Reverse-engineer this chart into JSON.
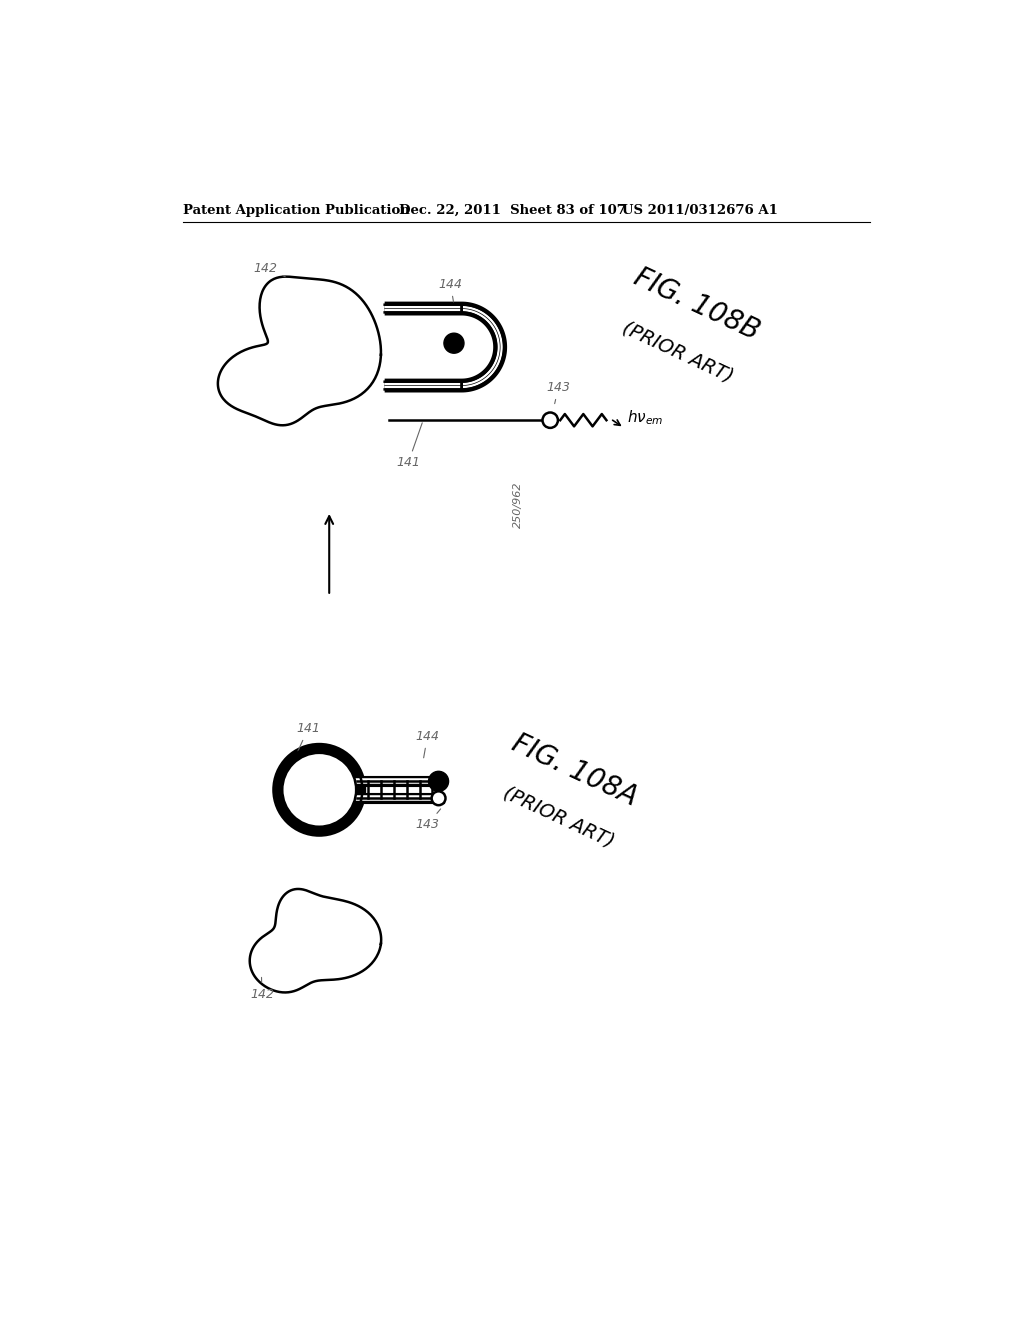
{
  "header_left": "Patent Application Publication",
  "header_mid": "Dec. 22, 2011  Sheet 83 of 107",
  "header_right": "US 2011/0312676 A1",
  "fig_a_label": "FIG. 108A",
  "fig_a_sub": "(PRIOR ART)",
  "fig_b_label": "FIG. 108B",
  "fig_b_sub": "(PRIOR ART)",
  "bg_color": "#ffffff",
  "line_color": "#000000",
  "label_color": "#666666",
  "coil_lw": 10,
  "thin_lw": 1.8
}
